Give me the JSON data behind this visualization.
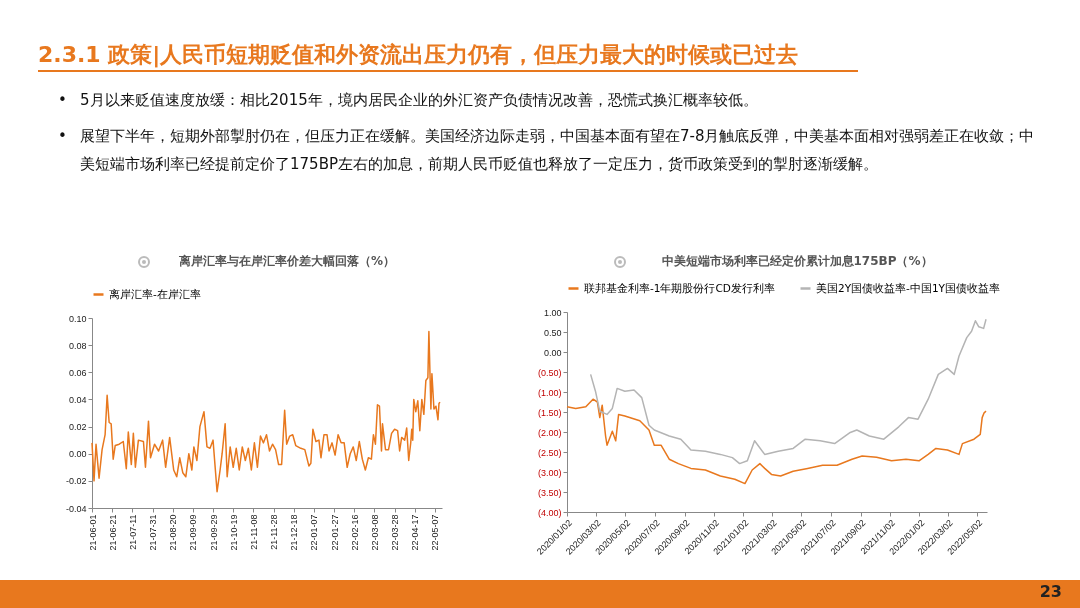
{
  "chart_data": [
    {
      "type": "other",
      "title": "2.3.1 政策|人民币短期贬值和外资流出压力仍有，但压力最大的时候或已过去",
      "annotations": [
        "•",
        "5月以来贬值速度放缓：相比2015年，境内居民企业的外汇资产负债情况改善，恐慌式换汇概率较低。",
        "•",
        "展望下半年，短期外部掣肘仍在，但压力正在缓解。美国经济边际走弱，中国基本面有望在7-8月触底反弹，中美基本面相对强弱差正在收敛；中美短端市场利率已经提前定价了175BP左右的加息，前期人民币贬值也释放了一定压力，货币政策受到的掣肘逐渐缓解。",
        "23"
      ]
    },
    {
      "type": "line",
      "title": "离岸汇率与在岸汇率价差大幅回落（%）",
      "legend": "top",
      "grid": false,
      "x": [
        "2021-06-01",
        "2021-06-03",
        "2021-06-05",
        "2021-06-08",
        "2021-06-11",
        "2021-06-14",
        "2021-06-16",
        "2021-06-18",
        "2021-06-20",
        "2021-06-22",
        "2021-06-24",
        "2021-06-28",
        "2021-07-02",
        "2021-07-05",
        "2021-07-07",
        "2021-07-10",
        "2021-07-12",
        "2021-07-14",
        "2021-07-17",
        "2021-07-22",
        "2021-07-24",
        "2021-07-27",
        "2021-07-29",
        "2021-08-02",
        "2021-08-06",
        "2021-08-10",
        "2021-08-13",
        "2021-08-17",
        "2021-08-21",
        "2021-08-24",
        "2021-08-27",
        "2021-08-30",
        "2021-09-02",
        "2021-09-05",
        "2021-09-08",
        "2021-09-10",
        "2021-09-13",
        "2021-09-16",
        "2021-09-20",
        "2021-09-23",
        "2021-09-26",
        "2021-09-29",
        "2021-10-03",
        "2021-10-06",
        "2021-10-08",
        "2021-10-11",
        "2021-10-13",
        "2021-10-16",
        "2021-10-19",
        "2021-10-22",
        "2021-10-25",
        "2021-10-28",
        "2021-10-31",
        "2021-11-03",
        "2021-11-06",
        "2021-11-09",
        "2021-11-12",
        "2021-11-15",
        "2021-11-18",
        "2021-11-21",
        "2021-11-24",
        "2021-11-27",
        "2021-11-30",
        "2021-12-03",
        "2021-12-06",
        "2021-12-09",
        "2021-12-11",
        "2021-12-14",
        "2021-12-17",
        "2021-12-20",
        "2021-12-25",
        "2021-12-29",
        "2022-01-02",
        "2022-01-04",
        "2022-01-06",
        "2022-01-09",
        "2022-01-12",
        "2022-01-14",
        "2022-01-17",
        "2022-01-20",
        "2022-01-22",
        "2022-01-25",
        "2022-01-28",
        "2022-01-31",
        "2022-02-03",
        "2022-02-06",
        "2022-02-09",
        "2022-02-12",
        "2022-02-15",
        "2022-02-18",
        "2022-02-21",
        "2022-02-24",
        "2022-02-27",
        "2022-03-02",
        "2022-03-05",
        "2022-03-07",
        "2022-03-09",
        "2022-03-11",
        "2022-03-13",
        "2022-03-15",
        "2022-03-16",
        "2022-03-19",
        "2022-03-22",
        "2022-03-25",
        "2022-03-28",
        "2022-03-31",
        "2022-04-02",
        "2022-04-04",
        "2022-04-07",
        "2022-04-09",
        "2022-04-11",
        "2022-04-13",
        "2022-04-14",
        "2022-04-15",
        "2022-04-16",
        "2022-04-18",
        "2022-04-20",
        "2022-04-22",
        "2022-04-24",
        "2022-04-26",
        "2022-04-28",
        "2022-04-30",
        "2022-05-01",
        "2022-05-03",
        "2022-05-04",
        "2022-05-06",
        "2022-05-08",
        "2022-05-10",
        "2022-05-11",
        "2022-05-12"
      ],
      "series": [
        {
          "name": "离岸汇率-在岸汇率",
          "color": "#e8781e",
          "values": [
            0.008,
            -0.02,
            0.007,
            -0.018,
            0.003,
            0.014,
            0.043,
            0.023,
            0.022,
            -0.004,
            0.006,
            0.007,
            0.009,
            -0.011,
            0.016,
            -0.008,
            0.015,
            -0.01,
            0.01,
            0.009,
            -0.01,
            0.024,
            -0.003,
            0.007,
            0.002,
            0.01,
            -0.01,
            0.012,
            -0.012,
            -0.017,
            -0.003,
            -0.014,
            -0.017,
            0.0,
            -0.012,
            0.005,
            -0.005,
            0.02,
            0.031,
            0.005,
            0.004,
            0.01,
            -0.028,
            -0.012,
            0.0,
            0.022,
            -0.017,
            0.005,
            -0.01,
            0.004,
            -0.012,
            0.005,
            -0.005,
            0.004,
            -0.012,
            0.008,
            -0.01,
            0.013,
            0.008,
            0.014,
            0.002,
            0.007,
            0.003,
            -0.008,
            -0.008,
            0.032,
            0.007,
            0.013,
            0.014,
            0.006,
            0.004,
            0.003,
            -0.009,
            -0.007,
            0.018,
            0.009,
            0.01,
            -0.003,
            0.014,
            0.014,
            0.002,
            0.008,
            -0.001,
            0.014,
            0.008,
            0.008,
            -0.01,
            0.0,
            0.005,
            -0.005,
            0.009,
            -0.004,
            -0.012,
            -0.003,
            -0.004,
            0.014,
            0.007,
            0.036,
            0.035,
            0.002,
            0.022,
            0.003,
            0.003,
            0.015,
            0.018,
            0.017,
            0.002,
            0.012,
            0.01,
            0.019,
            -0.005,
            0.008,
            0.018,
            0.01,
            0.04,
            0.031,
            0.039,
            0.017,
            0.04,
            0.029,
            0.054,
            0.056,
            0.09,
            0.033,
            0.059,
            0.033,
            0.035,
            0.025,
            0.037,
            0.038
          ]
        }
      ],
      "xlim": [
        "2021-06-01",
        "2022-05-14"
      ],
      "xticks": [
        {
          "value": "2021-06-01",
          "label": "21-06-01"
        },
        {
          "value": "2021-06-21",
          "label": "21-06-21"
        },
        {
          "value": "2021-07-11",
          "label": "21-07-11"
        },
        {
          "value": "2021-07-31",
          "label": "21-07-31"
        },
        {
          "value": "2021-08-20",
          "label": "21-08-20"
        },
        {
          "value": "2021-09-09",
          "label": "21-09-09"
        },
        {
          "value": "2021-09-29",
          "label": "21-09-29"
        },
        {
          "value": "2021-10-19",
          "label": "21-10-19"
        },
        {
          "value": "2021-11-08",
          "label": "21-11-08"
        },
        {
          "value": "2021-11-28",
          "label": "21-11-28"
        },
        {
          "value": "2021-12-18",
          "label": "21-12-18"
        },
        {
          "value": "2022-01-07",
          "label": "22-01-07"
        },
        {
          "value": "2022-01-27",
          "label": "22-01-27"
        },
        {
          "value": "2022-02-16",
          "label": "22-02-16"
        },
        {
          "value": "2022-03-08",
          "label": "22-03-08"
        },
        {
          "value": "2022-03-28",
          "label": "22-03-28"
        },
        {
          "value": "2022-04-17",
          "label": "22-04-17"
        },
        {
          "value": "2022-05-07",
          "label": "22-05-07"
        }
      ],
      "ylim": [
        -0.04,
        0.1
      ],
      "yticks": [
        {
          "value": -0.04,
          "label": "-0.04"
        },
        {
          "value": -0.02,
          "label": "-0.02"
        },
        {
          "value": 0,
          "label": "0.00"
        },
        {
          "value": 0.02,
          "label": "0.02"
        },
        {
          "value": 0.04,
          "label": "0.04"
        },
        {
          "value": 0.06,
          "label": "0.06"
        },
        {
          "value": 0.08,
          "label": "0.08"
        },
        {
          "value": 0.1,
          "label": "0.10"
        }
      ]
    },
    {
      "type": "line",
      "title": "中美短端市场利率已经定价累计加息175BP（%）",
      "legend": "top",
      "grid": false,
      "series": [
        {
          "name": "联邦基金利率-1年期股份行CD发行利率",
          "color": "#e8781e",
          "x": [
            "2020-01-02",
            "2020-01-20",
            "2020-02-10",
            "2020-02-25",
            "2020-03-05",
            "2020-03-10",
            "2020-03-15",
            "2020-03-22",
            "2020-03-25",
            "2020-04-05",
            "2020-04-12",
            "2020-04-18",
            "2020-05-01",
            "2020-06-01",
            "2020-06-20",
            "2020-07-01",
            "2020-07-15",
            "2020-08-01",
            "2020-08-20",
            "2020-09-15",
            "2020-10-15",
            "2020-11-15",
            "2020-12-15",
            "2021-01-05",
            "2021-01-20",
            "2021-02-05",
            "2021-02-15",
            "2021-03-01",
            "2021-03-20",
            "2021-04-15",
            "2021-05-15",
            "2021-06-15",
            "2021-07-15",
            "2021-08-15",
            "2021-09-05",
            "2021-10-05",
            "2021-11-05",
            "2021-12-05",
            "2022-01-01",
            "2022-01-20",
            "2022-02-05",
            "2022-03-01",
            "2022-03-25",
            "2022-04-01",
            "2022-04-25",
            "2022-05-08",
            "2022-05-12",
            "2022-05-16",
            "2022-05-20"
          ],
          "values": [
            -1.37,
            -1.41,
            -1.37,
            -1.18,
            -1.25,
            -1.64,
            -1.33,
            -2.1,
            -2.33,
            -1.98,
            -2.22,
            -1.56,
            -1.6,
            -1.72,
            -1.95,
            -2.33,
            -2.33,
            -2.68,
            -2.79,
            -2.91,
            -2.95,
            -3.1,
            -3.18,
            -3.29,
            -2.95,
            -2.79,
            -2.91,
            -3.06,
            -3.1,
            -2.98,
            -2.91,
            -2.83,
            -2.83,
            -2.68,
            -2.6,
            -2.63,
            -2.72,
            -2.68,
            -2.72,
            -2.56,
            -2.41,
            -2.45,
            -2.56,
            -2.29,
            -2.18,
            -2.06,
            -1.64,
            -1.52,
            -1.48
          ]
        },
        {
          "name": "美国2Y国债收益率-中国1Y国债收益率",
          "color": "#b4b4b4",
          "x": [
            "2020-02-20",
            "2020-03-01",
            "2020-03-10",
            "2020-03-25",
            "2020-04-05",
            "2020-04-15",
            "2020-05-01",
            "2020-05-20",
            "2020-06-05",
            "2020-06-20",
            "2020-07-01",
            "2020-08-01",
            "2020-08-25",
            "2020-09-15",
            "2020-10-15",
            "2020-11-15",
            "2020-12-10",
            "2020-12-25",
            "2021-01-10",
            "2021-01-25",
            "2021-02-15",
            "2021-03-15",
            "2021-04-15",
            "2021-05-10",
            "2021-06-10",
            "2021-07-10",
            "2021-08-10",
            "2021-08-25",
            "2021-09-20",
            "2021-10-20",
            "2021-11-20",
            "2021-12-10",
            "2021-12-30",
            "2022-01-20",
            "2022-02-10",
            "2022-03-01",
            "2022-03-15",
            "2022-03-25",
            "2022-04-10",
            "2022-04-20",
            "2022-04-28",
            "2022-05-05",
            "2022-05-15",
            "2022-05-20"
          ],
          "values": [
            -0.56,
            -0.98,
            -1.48,
            -1.56,
            -1.41,
            -0.91,
            -0.98,
            -0.95,
            -1.14,
            -1.83,
            -1.95,
            -2.1,
            -2.18,
            -2.45,
            -2.48,
            -2.56,
            -2.64,
            -2.79,
            -2.72,
            -2.22,
            -2.56,
            -2.48,
            -2.41,
            -2.18,
            -2.22,
            -2.29,
            -2.02,
            -1.95,
            -2.1,
            -2.18,
            -1.87,
            -1.64,
            -1.68,
            -1.18,
            -0.56,
            -0.41,
            -0.56,
            -0.1,
            0.36,
            0.52,
            0.78,
            0.63,
            0.59,
            0.82
          ]
        }
      ],
      "xlim": [
        "2020-01-02",
        "2022-05-22"
      ],
      "xticks": [
        {
          "value": "2020-01-02",
          "label": "2020/01/02"
        },
        {
          "value": "2020-03-02",
          "label": "2020/03/02"
        },
        {
          "value": "2020-05-02",
          "label": "2020/05/02"
        },
        {
          "value": "2020-07-02",
          "label": "2020/07/02"
        },
        {
          "value": "2020-09-02",
          "label": "2020/09/02"
        },
        {
          "value": "2020-11-02",
          "label": "2020/11/02"
        },
        {
          "value": "2021-01-02",
          "label": "2021/01/02"
        },
        {
          "value": "2021-03-02",
          "label": "2021/03/02"
        },
        {
          "value": "2021-05-02",
          "label": "2021/05/02"
        },
        {
          "value": "2021-07-02",
          "label": "2021/07/02"
        },
        {
          "value": "2021-09-02",
          "label": "2021/09/02"
        },
        {
          "value": "2021-11-02",
          "label": "2021/11/02"
        },
        {
          "value": "2022-01-02",
          "label": "2022/01/02"
        },
        {
          "value": "2022-03-02",
          "label": "2022/03/02"
        },
        {
          "value": "2022-05-02",
          "label": "2022/05/02"
        }
      ],
      "ylim": [
        -4,
        1
      ],
      "yticks": [
        {
          "value": -4,
          "label": "(4.00)"
        },
        {
          "value": -3.5,
          "label": "(3.50)"
        },
        {
          "value": -3,
          "label": "(3.00)"
        },
        {
          "value": -2.5,
          "label": "(2.50)"
        },
        {
          "value": -2,
          "label": "(2.00)"
        },
        {
          "value": -1.5,
          "label": "(1.50)"
        },
        {
          "value": -1,
          "label": "(1.00)"
        },
        {
          "value": -0.5,
          "label": "(0.50)"
        },
        {
          "value": 0,
          "label": "0.00"
        },
        {
          "value": 0.5,
          "label": "0.50"
        },
        {
          "value": 1,
          "label": "1.00"
        }
      ]
    }
  ]
}
